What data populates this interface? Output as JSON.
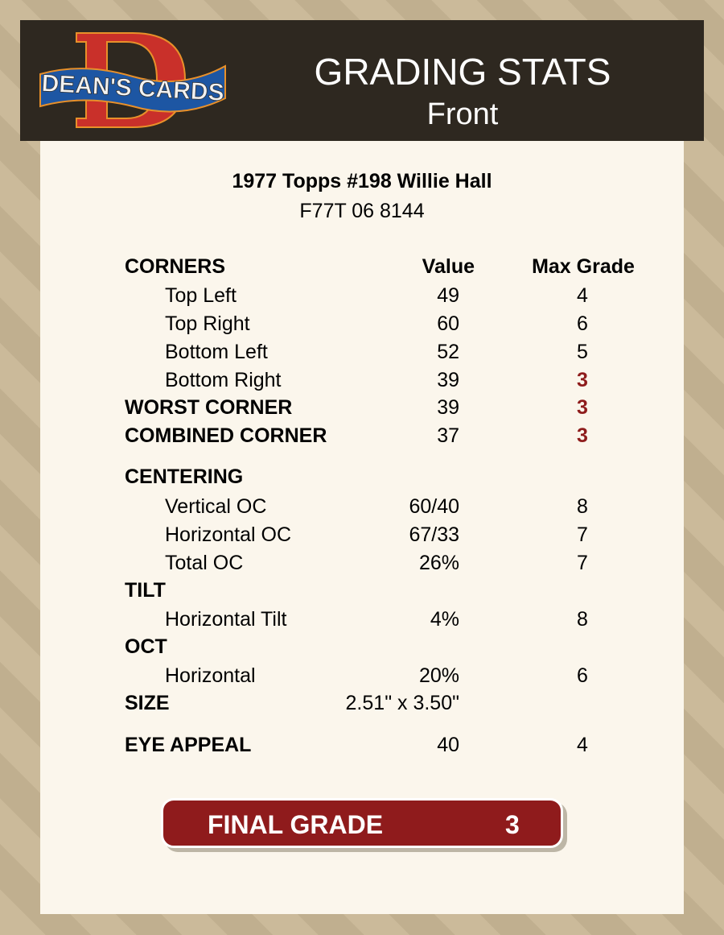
{
  "header": {
    "logo_text": "DEAN'S CARDS",
    "title": "GRADING STATS",
    "subtitle": "Front"
  },
  "card": {
    "title": "1977 Topps #198 Willie Hall",
    "cert": "F77T 06 8144"
  },
  "columns": {
    "value": "Value",
    "max": "Max Grade"
  },
  "rows": [
    {
      "label": "CORNERS",
      "bold": true,
      "value": "",
      "max": "",
      "header": true
    },
    {
      "label": "Top Left",
      "value": "49",
      "max": "4"
    },
    {
      "label": "Top Right",
      "value": "60",
      "max": "6"
    },
    {
      "label": "Bottom Left",
      "value": "52",
      "max": "5"
    },
    {
      "label": "Bottom Right",
      "value": "39",
      "max": "3",
      "red": true
    },
    {
      "label": "WORST CORNER",
      "bold": true,
      "value": "39",
      "max": "3",
      "red": true
    },
    {
      "label": "COMBINED CORNER",
      "bold": true,
      "value": "37",
      "max": "3",
      "red": true
    },
    {
      "label": "CENTERING",
      "bold": true,
      "value": "",
      "max": ""
    },
    {
      "label": "Vertical OC",
      "value": "60/40",
      "max": "8"
    },
    {
      "label": "Horizontal OC",
      "value": "67/33",
      "max": "7"
    },
    {
      "label": "Total OC",
      "value": "26%",
      "max": "7"
    },
    {
      "label": "TILT",
      "bold": true,
      "value": "",
      "max": ""
    },
    {
      "label": "Horizontal Tilt",
      "value": "4%",
      "max": "8"
    },
    {
      "label": "OCT",
      "bold": true,
      "value": "",
      "max": ""
    },
    {
      "label": "Horizontal",
      "value": "20%",
      "max": "6"
    },
    {
      "label": "SIZE",
      "bold": true,
      "value": "2.51\" x 3.50\"",
      "max": ""
    },
    {
      "label": "EYE APPEAL",
      "bold": true,
      "value": "40",
      "max": "4"
    }
  ],
  "final": {
    "label": "FINAL GRADE",
    "value": "3"
  },
  "colors": {
    "header_bg": "#2e2820",
    "panel_bg": "#fbf6ec",
    "accent_red": "#8f1b1c"
  }
}
